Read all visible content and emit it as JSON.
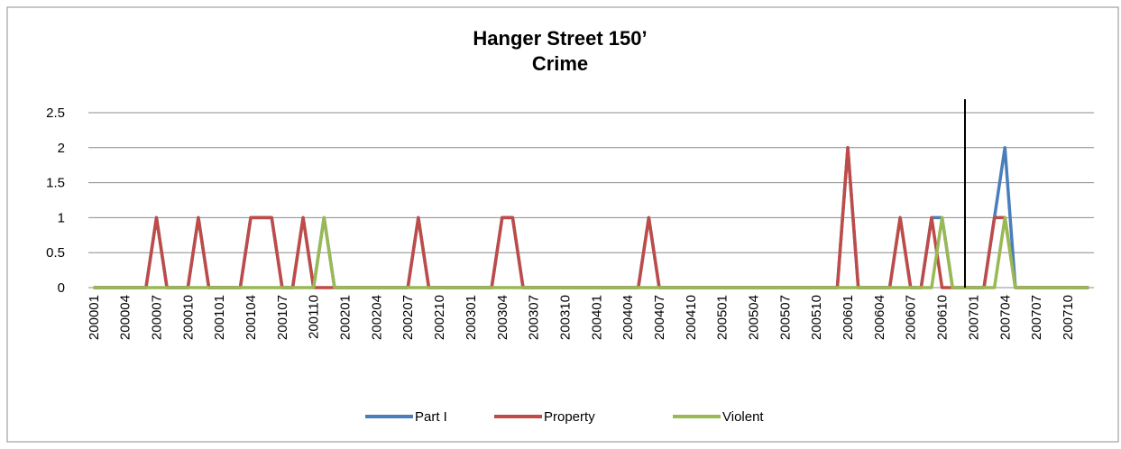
{
  "chart_data": {
    "type": "line",
    "title": [
      "Hanger Street 150’",
      "Crime"
    ],
    "categories": [
      "200001",
      null,
      null,
      "200004",
      null,
      null,
      "200007",
      null,
      null,
      "200010",
      null,
      null,
      "200101",
      null,
      null,
      "200104",
      null,
      null,
      "200107",
      null,
      null,
      "200110",
      null,
      null,
      "200201",
      null,
      null,
      "200204",
      null,
      null,
      "200207",
      null,
      null,
      "200210",
      null,
      null,
      "200301",
      null,
      null,
      "200304",
      null,
      null,
      "200307",
      null,
      null,
      "200310",
      null,
      null,
      "200401",
      null,
      null,
      "200404",
      null,
      null,
      "200407",
      null,
      null,
      "200410",
      null,
      null,
      "200501",
      null,
      null,
      "200504",
      null,
      null,
      "200507",
      null,
      null,
      "200510",
      null,
      null,
      "200601",
      null,
      null,
      "200604",
      null,
      null,
      "200607",
      null,
      null,
      "200610",
      null,
      null,
      "200701",
      null,
      null,
      "200704",
      null,
      null,
      "200707",
      null,
      null,
      "200710",
      null,
      null
    ],
    "series": [
      {
        "name": "Part I",
        "color": "#4a7ebb",
        "values": [
          0,
          0,
          0,
          0,
          0,
          0,
          1,
          0,
          0,
          0,
          1,
          0,
          0,
          0,
          0,
          1,
          1,
          1,
          0,
          0,
          1,
          0,
          1,
          0,
          0,
          0,
          0,
          0,
          0,
          0,
          0,
          1,
          0,
          0,
          0,
          0,
          0,
          0,
          0,
          1,
          1,
          0,
          0,
          0,
          0,
          0,
          0,
          0,
          0,
          0,
          0,
          0,
          0,
          1,
          0,
          0,
          0,
          0,
          0,
          0,
          0,
          0,
          0,
          0,
          0,
          0,
          0,
          0,
          0,
          0,
          0,
          0,
          2,
          0,
          0,
          0,
          0,
          1,
          0,
          0,
          1,
          1,
          0,
          0,
          0,
          0,
          1,
          2,
          0,
          0,
          0,
          0,
          0,
          0,
          0,
          0
        ]
      },
      {
        "name": "Property",
        "color": "#be4b48",
        "values": [
          0,
          0,
          0,
          0,
          0,
          0,
          1,
          0,
          0,
          0,
          1,
          0,
          0,
          0,
          0,
          1,
          1,
          1,
          0,
          0,
          1,
          0,
          0,
          0,
          0,
          0,
          0,
          0,
          0,
          0,
          0,
          1,
          0,
          0,
          0,
          0,
          0,
          0,
          0,
          1,
          1,
          0,
          0,
          0,
          0,
          0,
          0,
          0,
          0,
          0,
          0,
          0,
          0,
          1,
          0,
          0,
          0,
          0,
          0,
          0,
          0,
          0,
          0,
          0,
          0,
          0,
          0,
          0,
          0,
          0,
          0,
          0,
          2,
          0,
          0,
          0,
          0,
          1,
          0,
          0,
          1,
          0,
          0,
          0,
          0,
          0,
          1,
          1,
          0,
          0,
          0,
          0,
          0,
          0,
          0,
          0
        ]
      },
      {
        "name": "Violent",
        "color": "#98b954",
        "values": [
          0,
          0,
          0,
          0,
          0,
          0,
          0,
          0,
          0,
          0,
          0,
          0,
          0,
          0,
          0,
          0,
          0,
          0,
          0,
          0,
          0,
          0,
          1,
          0,
          0,
          0,
          0,
          0,
          0,
          0,
          0,
          0,
          0,
          0,
          0,
          0,
          0,
          0,
          0,
          0,
          0,
          0,
          0,
          0,
          0,
          0,
          0,
          0,
          0,
          0,
          0,
          0,
          0,
          0,
          0,
          0,
          0,
          0,
          0,
          0,
          0,
          0,
          0,
          0,
          0,
          0,
          0,
          0,
          0,
          0,
          0,
          0,
          0,
          0,
          0,
          0,
          0,
          0,
          0,
          0,
          0,
          1,
          0,
          0,
          0,
          0,
          0,
          1,
          0,
          0,
          0,
          0,
          0,
          0,
          0,
          0
        ]
      }
    ],
    "ylim": [
      0,
      2.5
    ],
    "yticks": [
      0,
      0.5,
      1,
      1.5,
      2,
      2.5
    ],
    "grid": true,
    "legend": "bottom"
  }
}
